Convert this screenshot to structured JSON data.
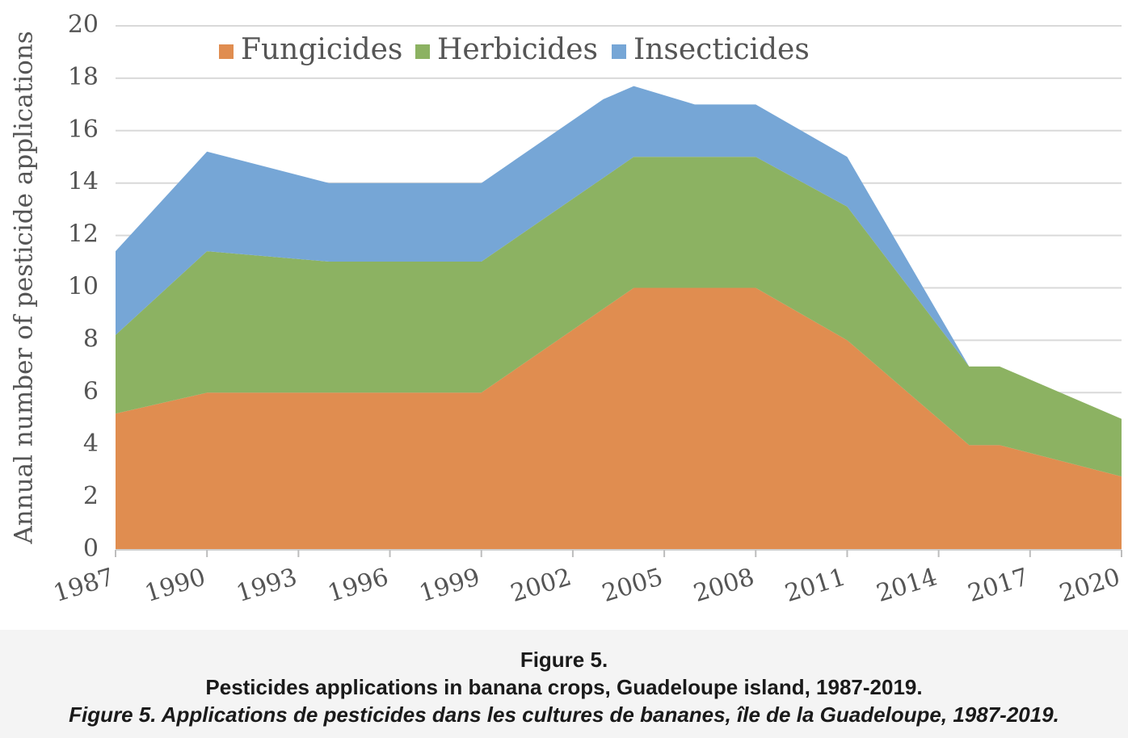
{
  "chart_data": {
    "type": "area",
    "stacked": true,
    "x": [
      1987,
      1990,
      1994,
      1999,
      2003,
      2004,
      2006,
      2008,
      2011,
      2015,
      2016,
      2020
    ],
    "series": [
      {
        "name": "Fungicides",
        "color": "#e08d50",
        "values": [
          5.2,
          6,
          6,
          6,
          9.2,
          10,
          10,
          10,
          8,
          4,
          4,
          2.8
        ]
      },
      {
        "name": "Herbicides",
        "color": "#8cb262",
        "values": [
          3,
          5.4,
          5,
          5,
          5,
          5,
          5,
          5,
          5.1,
          3,
          3,
          2.2
        ]
      },
      {
        "name": "Insecticides",
        "color": "#76a6d6",
        "values": [
          3.2,
          3.8,
          3,
          3,
          3,
          2.7,
          2,
          2,
          1.9,
          0,
          0,
          0
        ]
      }
    ],
    "xticks": [
      "1987",
      "1990",
      "1993",
      "1996",
      "1999",
      "2002",
      "2005",
      "2008",
      "2011",
      "2014",
      "2017",
      "2020"
    ],
    "yticks": [
      "0",
      "2",
      "4",
      "6",
      "8",
      "10",
      "12",
      "14",
      "16",
      "18",
      "20"
    ],
    "xlim": [
      1987,
      2020
    ],
    "ylim": [
      0,
      20
    ],
    "ylabel": "Annual number of pesticide applications",
    "xlabel": "",
    "legend_position": "top",
    "grid": true
  },
  "caption": {
    "figure_label": "Figure 5.",
    "title_en": "Pesticides applications in banana crops, Guadeloupe island, 1987-2019.",
    "title_fr": "Figure 5. Applications de pesticides dans les cultures de bananes, île de la Guadeloupe, 1987-2019."
  }
}
